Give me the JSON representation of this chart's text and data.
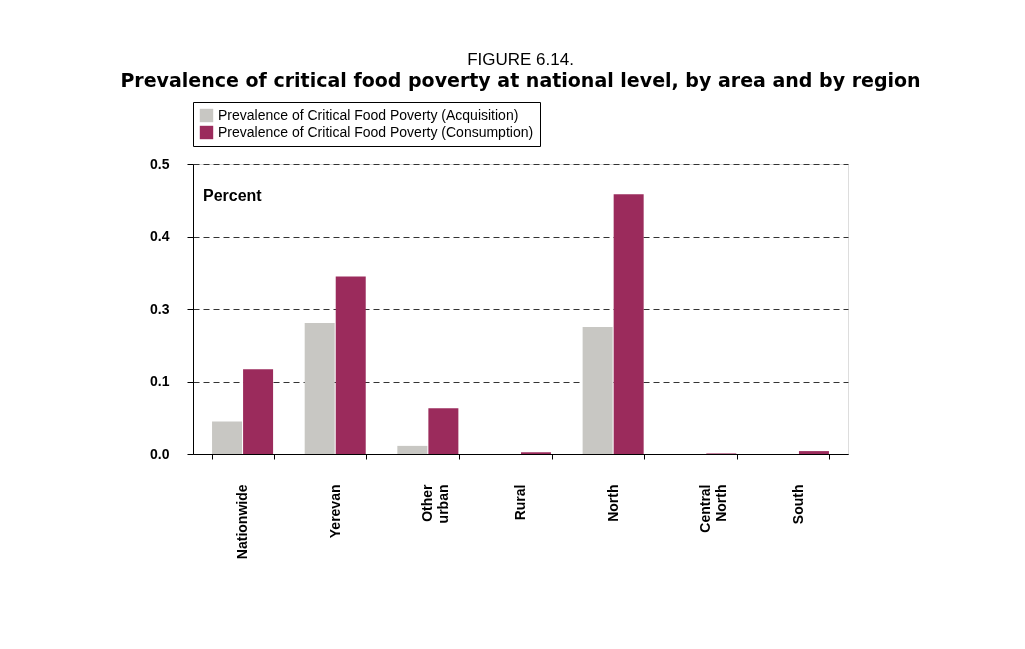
{
  "chart_data": {
    "type": "bar",
    "title": "FIGURE 6.14.",
    "subtitle": "Prevalence of critical food poverty at national level, by area and by region",
    "categories": [
      "Nationwide",
      "Yerevan",
      "Other urban",
      "Rural",
      "North",
      "Central North",
      "South"
    ],
    "series": [
      {
        "name": "Prevalence of Critical Food Poverty (Acquisition)",
        "color": "#c8c7c3",
        "values": [
          0.056,
          0.226,
          0.014,
          null,
          0.219,
          0.0,
          null
        ]
      },
      {
        "name": "Prevalence of Critical Food Poverty (Consumption)",
        "color": "#9b2b5c",
        "values": [
          0.146,
          0.306,
          0.079,
          0.003,
          0.448,
          0.001,
          0.005
        ]
      }
    ],
    "ylim": [
      0,
      0.5
    ],
    "yticks": [
      {
        "value": 0,
        "label": "0.0"
      },
      {
        "value": 0.125,
        "label": "0.1"
      },
      {
        "value": 0.25,
        "label": "0.3"
      },
      {
        "value": 0.375,
        "label": "0.4"
      },
      {
        "value": 0.5,
        "label": "0.5"
      }
    ],
    "grid": "y",
    "legend": "top",
    "annotations": [
      "Percent"
    ]
  }
}
